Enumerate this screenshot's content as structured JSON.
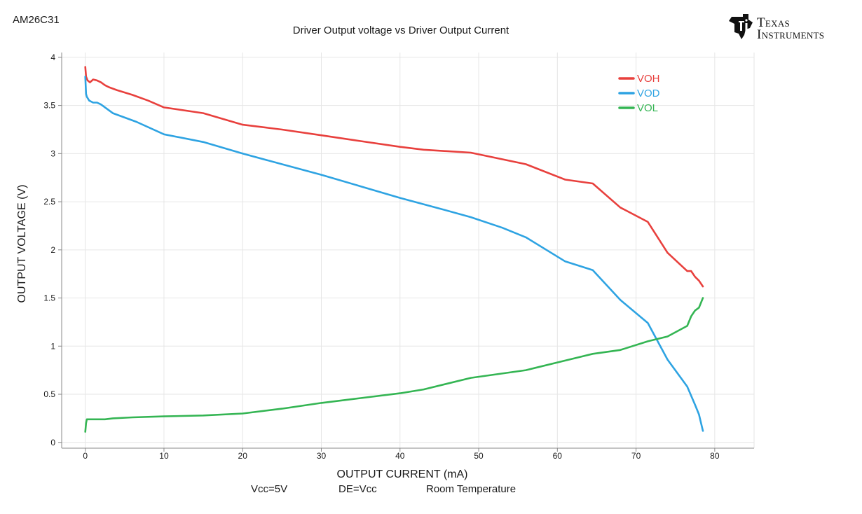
{
  "device_label": "AM26C31",
  "logo": {
    "line1": "Texas",
    "line2": "Instruments"
  },
  "footer": {
    "vcc": "Vcc=5V",
    "de": "DE=Vcc",
    "temp": "Room Temperature"
  },
  "colors": {
    "axis": "#888888",
    "grid": "#e6e6e6",
    "text": "#1a1a1a"
  },
  "chart_data": {
    "type": "line",
    "title": "Driver Output voltage vs Driver Output Current",
    "xlabel": "OUTPUT CURRENT (mA)",
    "ylabel": "OUTPUT VOLTAGE (V)",
    "xlim": [
      -3,
      85
    ],
    "ylim": [
      -0.06,
      4.05
    ],
    "xticks": [
      0,
      10,
      20,
      30,
      40,
      50,
      60,
      70,
      80
    ],
    "yticks": [
      0,
      0.5,
      1,
      1.5,
      2,
      2.5,
      3,
      3.5,
      4
    ],
    "xticklabels": [
      "0",
      "10",
      "20",
      "30",
      "40",
      "50",
      "60",
      "70",
      "80"
    ],
    "yticklabels": [
      "0",
      "0.5",
      "1",
      "1.5",
      "2",
      "2.5",
      "3",
      "3.5",
      "4"
    ],
    "grid": true,
    "legend_position": "top-right",
    "series": [
      {
        "name": "VOH",
        "color": "#e8403d",
        "x": [
          0,
          0.1,
          0.3,
          0.6,
          1,
          1.5,
          2,
          2.5,
          3,
          4,
          6,
          8,
          10,
          15,
          20,
          25,
          30,
          35,
          40,
          43,
          49,
          56,
          61,
          64.5,
          68,
          71.5,
          74,
          76.5,
          77,
          77.5,
          78,
          78.5
        ],
        "y": [
          3.9,
          3.8,
          3.76,
          3.74,
          3.77,
          3.76,
          3.74,
          3.71,
          3.69,
          3.66,
          3.61,
          3.55,
          3.48,
          3.42,
          3.3,
          3.25,
          3.19,
          3.13,
          3.07,
          3.04,
          3.01,
          2.89,
          2.73,
          2.69,
          2.44,
          2.29,
          1.97,
          1.78,
          1.78,
          1.72,
          1.68,
          1.62
        ]
      },
      {
        "name": "VOD",
        "color": "#2ea3e2",
        "x": [
          0,
          0.1,
          0.2,
          0.5,
          1,
          1.5,
          2,
          3.5,
          6.5,
          10,
          15,
          20,
          25,
          30,
          35,
          40,
          45,
          49,
          53,
          56,
          61,
          64.5,
          68,
          71.5,
          74,
          76.5,
          77.5,
          78,
          78.5
        ],
        "y": [
          3.8,
          3.62,
          3.59,
          3.55,
          3.53,
          3.53,
          3.51,
          3.42,
          3.33,
          3.2,
          3.12,
          3.0,
          2.89,
          2.78,
          2.66,
          2.54,
          2.43,
          2.34,
          2.23,
          2.13,
          1.88,
          1.79,
          1.48,
          1.24,
          0.86,
          0.58,
          0.39,
          0.29,
          0.12
        ]
      },
      {
        "name": "VOL",
        "color": "#34b553",
        "x": [
          0,
          0.1,
          0.2,
          1,
          2,
          2.5,
          3.5,
          6,
          10,
          15,
          20,
          25,
          30,
          35,
          40,
          43,
          49,
          56,
          61,
          64.5,
          68,
          71.5,
          74,
          76.5,
          77,
          77.5,
          78,
          78.5
        ],
        "y": [
          0.11,
          0.2,
          0.24,
          0.24,
          0.24,
          0.24,
          0.25,
          0.26,
          0.27,
          0.28,
          0.3,
          0.35,
          0.41,
          0.46,
          0.51,
          0.55,
          0.67,
          0.75,
          0.85,
          0.92,
          0.96,
          1.05,
          1.1,
          1.21,
          1.31,
          1.37,
          1.4,
          1.5
        ]
      }
    ]
  }
}
